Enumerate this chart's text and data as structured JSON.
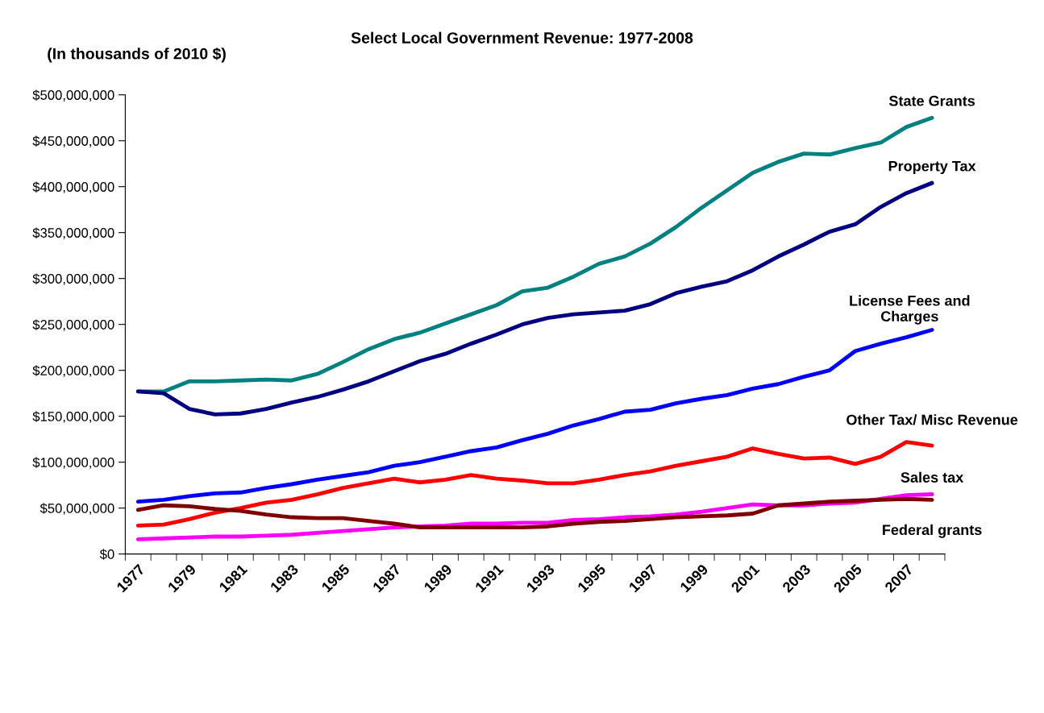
{
  "chart_data": {
    "type": "line",
    "title": "Select Local Government Revenue: 1977-2008",
    "ylabel": "(In thousands of 2010 $)",
    "categories": [
      "1977",
      null,
      "1979",
      null,
      "1981",
      null,
      "1983",
      null,
      "1985",
      null,
      "1987",
      null,
      "1989",
      null,
      "1991",
      null,
      "1993",
      null,
      "1995",
      null,
      "1997",
      null,
      "1999",
      null,
      "2001",
      null,
      "2003",
      null,
      "2005",
      null,
      "2007",
      null
    ],
    "ylim": [
      0,
      500000000
    ],
    "yticks": [
      {
        "value": 0,
        "label": "$0"
      },
      {
        "value": 50000000,
        "label": "$50,000,000"
      },
      {
        "value": 100000000,
        "label": "$100,000,000"
      },
      {
        "value": 150000000,
        "label": "$150,000,000"
      },
      {
        "value": 200000000,
        "label": "$200,000,000"
      },
      {
        "value": 250000000,
        "label": "$250,000,000"
      },
      {
        "value": 300000000,
        "label": "$300,000,000"
      },
      {
        "value": 350000000,
        "label": "$350,000,000"
      },
      {
        "value": 400000000,
        "label": "$400,000,000"
      },
      {
        "value": 450000000,
        "label": "$450,000,000"
      },
      {
        "value": 500000000,
        "label": "$500,000,000"
      }
    ],
    "grid": false,
    "legend": false,
    "marker": "none",
    "line_style": "solid",
    "series": [
      {
        "name": "State Grants",
        "color": "#008080",
        "values": [
          177000000,
          177000000,
          188000000,
          188000000,
          189000000,
          190000000,
          189000000,
          196000000,
          209000000,
          223000000,
          234000000,
          241000000,
          251000000,
          261000000,
          271000000,
          286000000,
          290000000,
          302000000,
          316000000,
          324000000,
          338000000,
          356000000,
          377000000,
          396000000,
          415000000,
          427000000,
          436000000,
          435000000,
          442000000,
          448000000,
          465000000,
          475000000
        ]
      },
      {
        "name": "Property Tax",
        "color": "#000080",
        "values": [
          177000000,
          175000000,
          158000000,
          152000000,
          153000000,
          158000000,
          165000000,
          171000000,
          179000000,
          188000000,
          199000000,
          210000000,
          218000000,
          229000000,
          239000000,
          250000000,
          257000000,
          261000000,
          263000000,
          265000000,
          272000000,
          284000000,
          291000000,
          297000000,
          309000000,
          324000000,
          337000000,
          351000000,
          359000000,
          378000000,
          393000000,
          404000000
        ]
      },
      {
        "name": "License Fees and\nCharges",
        "color": "#0000ff",
        "values": [
          57000000,
          59000000,
          63000000,
          66000000,
          67000000,
          72000000,
          76000000,
          81000000,
          85000000,
          89000000,
          96000000,
          100000000,
          106000000,
          112000000,
          116000000,
          124000000,
          131000000,
          140000000,
          147000000,
          155000000,
          157000000,
          164000000,
          169000000,
          173000000,
          180000000,
          185000000,
          193000000,
          200000000,
          221000000,
          229000000,
          236000000,
          244000000
        ]
      },
      {
        "name": "Other Tax/ Misc Revenue",
        "color": "#ff0000",
        "values": [
          31000000,
          32000000,
          38000000,
          45000000,
          50000000,
          56000000,
          59000000,
          65000000,
          72000000,
          77000000,
          82000000,
          78000000,
          81000000,
          86000000,
          82000000,
          80000000,
          77000000,
          77000000,
          81000000,
          86000000,
          90000000,
          96000000,
          101000000,
          106000000,
          115000000,
          109000000,
          104000000,
          105000000,
          98000000,
          106000000,
          122000000,
          118000000
        ]
      },
      {
        "name": "Sales tax",
        "color": "#ff00ff",
        "values": [
          16000000,
          17000000,
          18000000,
          19000000,
          19000000,
          20000000,
          21000000,
          23000000,
          25000000,
          27000000,
          29000000,
          30000000,
          31000000,
          33000000,
          33000000,
          34000000,
          34000000,
          37000000,
          38000000,
          40000000,
          41000000,
          43000000,
          46000000,
          50000000,
          54000000,
          53000000,
          53000000,
          55000000,
          56000000,
          60000000,
          64000000,
          65000000
        ]
      },
      {
        "name": "Federal grants",
        "color": "#800000",
        "values": [
          48000000,
          53000000,
          52000000,
          49000000,
          47000000,
          43000000,
          40000000,
          39000000,
          39000000,
          36000000,
          33000000,
          29000000,
          29000000,
          29000000,
          29000000,
          29000000,
          30000000,
          33000000,
          35000000,
          36000000,
          38000000,
          40000000,
          41000000,
          42000000,
          44000000,
          53000000,
          55000000,
          57000000,
          58000000,
          59000000,
          60000000,
          59000000
        ]
      }
    ]
  }
}
